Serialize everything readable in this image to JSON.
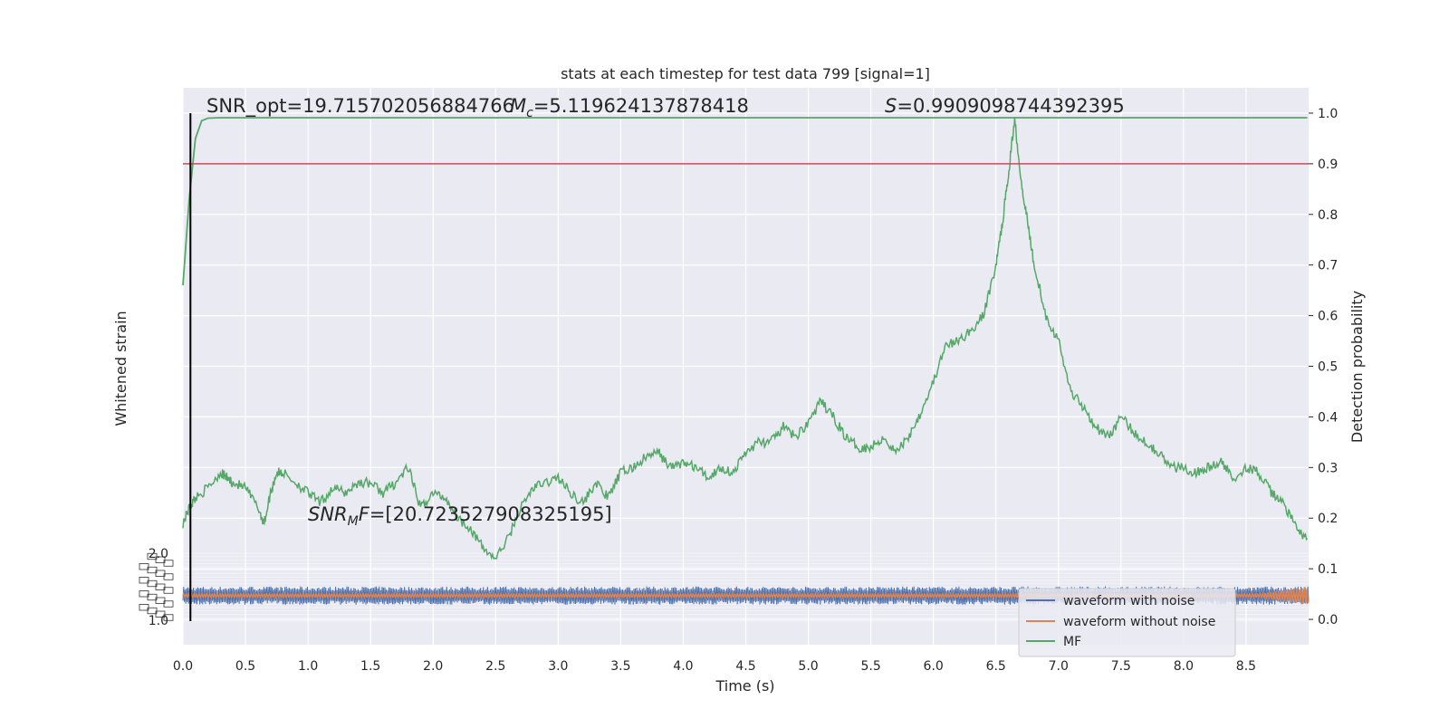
{
  "chart_data": {
    "type": "line",
    "title": "stats at each timestep for test data 799 [signal=1]",
    "xlabel": "Time (s)",
    "ylabel_left": "Whitened strain",
    "ylabel_right": "Detection probability",
    "xlim": [
      0.0,
      9.0
    ],
    "ylim_right": [
      -0.05,
      1.05
    ],
    "x_ticks": [
      "0.0",
      "0.5",
      "1.0",
      "1.5",
      "2.0",
      "2.5",
      "3.0",
      "3.5",
      "4.0",
      "4.5",
      "5.0",
      "5.5",
      "6.0",
      "6.5",
      "7.0",
      "7.5",
      "8.0",
      "8.5"
    ],
    "y_ticks_right": [
      "0.0",
      "0.1",
      "0.2",
      "0.3",
      "0.4",
      "0.5",
      "0.6",
      "0.7",
      "0.8",
      "0.9",
      "1.0"
    ],
    "left_tick_top": "2.0",
    "left_tick_bottom": "1.0",
    "threshold": 0.9,
    "marker_time": 0.06,
    "grid": true,
    "legend_position": "lower-right",
    "annotations": {
      "snr_opt": "SNR_opt=19.715702056884766",
      "mc": "=5.119624137878418",
      "s": "=0.9909098744392395",
      "snr_mf": "=[20.723527908325195]"
    },
    "series": [
      {
        "name": "MF",
        "color": "#55a868",
        "description": "cumulative detection probability",
        "x": [
          0.0,
          0.05,
          0.1,
          0.15,
          0.2,
          0.3,
          0.5,
          1.0,
          3.0,
          6.0,
          8.99
        ],
        "y": [
          0.66,
          0.83,
          0.95,
          0.985,
          0.99,
          0.991,
          0.991,
          0.991,
          0.991,
          0.991,
          0.991
        ]
      },
      {
        "name": "",
        "color": "#55a868",
        "description": "instantaneous detection statistic",
        "x": [
          0.0,
          0.05,
          0.1,
          0.2,
          0.3,
          0.35,
          0.4,
          0.5,
          0.6,
          0.65,
          0.7,
          0.75,
          0.8,
          0.9,
          1.0,
          1.1,
          1.2,
          1.3,
          1.4,
          1.5,
          1.6,
          1.7,
          1.8,
          1.9,
          2.0,
          2.1,
          2.2,
          2.3,
          2.4,
          2.5,
          2.6,
          2.7,
          2.8,
          2.9,
          3.0,
          3.1,
          3.2,
          3.3,
          3.4,
          3.5,
          3.6,
          3.7,
          3.8,
          3.9,
          4.0,
          4.1,
          4.2,
          4.3,
          4.4,
          4.5,
          4.6,
          4.7,
          4.8,
          4.9,
          5.0,
          5.1,
          5.2,
          5.3,
          5.4,
          5.5,
          5.6,
          5.7,
          5.8,
          5.9,
          6.0,
          6.1,
          6.2,
          6.3,
          6.4,
          6.5,
          6.55,
          6.6,
          6.65,
          6.7,
          6.75,
          6.8,
          6.9,
          7.0,
          7.1,
          7.2,
          7.3,
          7.4,
          7.5,
          7.6,
          7.7,
          7.8,
          7.9,
          8.0,
          8.1,
          8.2,
          8.3,
          8.4,
          8.5,
          8.6,
          8.7,
          8.8,
          8.9,
          8.99
        ],
        "y": [
          0.19,
          0.22,
          0.24,
          0.26,
          0.29,
          0.28,
          0.27,
          0.26,
          0.22,
          0.19,
          0.25,
          0.29,
          0.29,
          0.27,
          0.25,
          0.23,
          0.26,
          0.25,
          0.27,
          0.27,
          0.25,
          0.27,
          0.3,
          0.22,
          0.25,
          0.24,
          0.2,
          0.18,
          0.14,
          0.12,
          0.16,
          0.22,
          0.26,
          0.27,
          0.28,
          0.25,
          0.23,
          0.27,
          0.24,
          0.29,
          0.3,
          0.32,
          0.33,
          0.3,
          0.31,
          0.3,
          0.28,
          0.3,
          0.29,
          0.33,
          0.35,
          0.35,
          0.38,
          0.36,
          0.39,
          0.43,
          0.4,
          0.36,
          0.34,
          0.34,
          0.36,
          0.33,
          0.36,
          0.41,
          0.47,
          0.54,
          0.55,
          0.57,
          0.6,
          0.7,
          0.78,
          0.88,
          0.99,
          0.87,
          0.79,
          0.71,
          0.6,
          0.55,
          0.45,
          0.42,
          0.38,
          0.36,
          0.4,
          0.37,
          0.35,
          0.33,
          0.3,
          0.3,
          0.29,
          0.3,
          0.31,
          0.28,
          0.3,
          0.29,
          0.25,
          0.23,
          0.18,
          0.16
        ]
      },
      {
        "name": "waveform with noise",
        "color": "#4c72b0",
        "description": "noisy whitened strain band",
        "center": 0.047,
        "amplitude": 0.018
      },
      {
        "name": "waveform without noise",
        "color": "#dd8452",
        "description": "clean chirp waveform band",
        "center": 0.047,
        "amplitude": 0.004
      }
    ]
  }
}
